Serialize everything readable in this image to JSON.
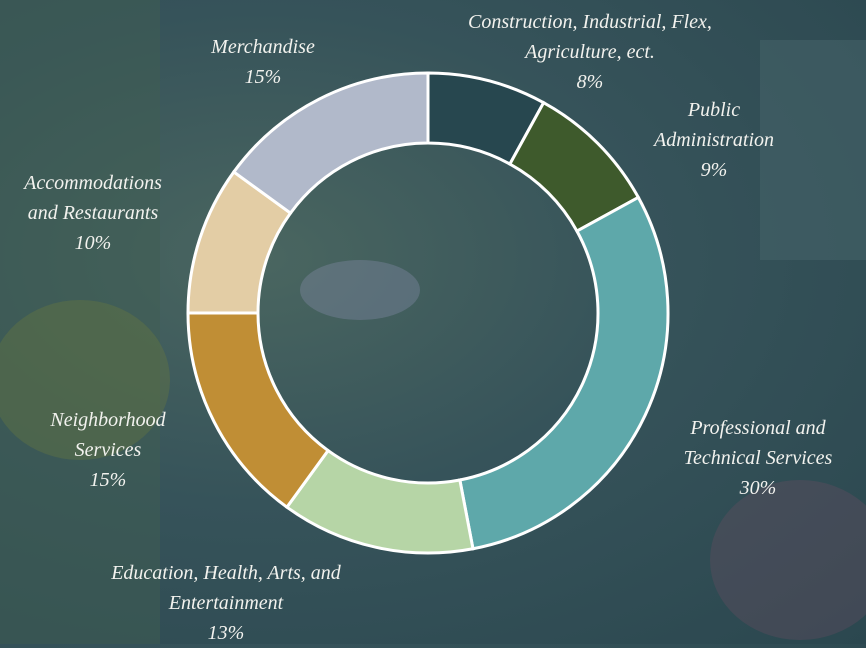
{
  "chart_data": {
    "type": "donut",
    "categories": [
      "Construction, Industrial, Flex, Agriculture, ect.",
      "Public Administration",
      "Professional and Technical Services",
      "Education, Health, Arts, and Entertainment",
      "Neighborhood Services",
      "Accommodations and Restaurants",
      "Merchandise"
    ],
    "values": [
      8,
      9,
      30,
      13,
      15,
      10,
      15
    ],
    "value_labels": [
      "8%",
      "9%",
      "30%",
      "13%",
      "15%",
      "10%",
      "15%"
    ],
    "colors": [
      "#27474f",
      "#3e5a2c",
      "#5ea8aa",
      "#b6d5a6",
      "#c08e35",
      "#e3cda5",
      "#b1b9ca"
    ]
  }
}
